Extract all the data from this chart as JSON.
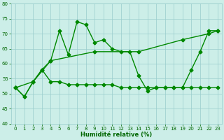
{
  "line1_x": [
    0,
    1,
    2,
    3,
    4,
    5,
    6,
    7,
    8,
    9,
    10,
    11,
    12,
    13,
    14,
    15,
    16,
    17,
    18,
    19,
    20,
    21,
    22,
    23
  ],
  "line1_y": [
    52,
    49,
    54,
    58,
    54,
    54,
    53,
    53,
    53,
    53,
    53,
    53,
    52,
    52,
    52,
    52,
    52,
    52,
    52,
    52,
    52,
    52,
    52,
    52
  ],
  "line2_x": [
    0,
    1,
    2,
    3,
    4,
    5,
    6,
    7,
    8,
    9,
    10,
    11,
    12,
    13,
    14,
    15,
    16,
    17,
    18,
    19,
    20,
    21,
    22,
    23
  ],
  "line2_y": [
    52,
    49,
    54,
    58,
    61,
    71,
    63,
    74,
    73,
    67,
    68,
    65,
    64,
    64,
    56,
    51,
    52,
    52,
    52,
    52,
    58,
    64,
    71,
    71
  ],
  "line3_x": [
    0,
    2,
    4,
    9,
    14,
    19,
    22,
    23
  ],
  "line3_y": [
    52,
    54,
    61,
    64,
    64,
    68,
    70,
    71
  ],
  "xlabel": "Humidité relative (%)",
  "xlim": [
    -0.5,
    23.5
  ],
  "ylim": [
    40,
    80
  ],
  "yticks": [
    40,
    45,
    50,
    55,
    60,
    65,
    70,
    75,
    80
  ],
  "xticks": [
    0,
    1,
    2,
    3,
    4,
    5,
    6,
    7,
    8,
    9,
    10,
    11,
    12,
    13,
    14,
    15,
    16,
    17,
    18,
    19,
    20,
    21,
    22,
    23
  ],
  "background_color": "#cceee8",
  "grid_color": "#99cccc",
  "line_color": "#008800",
  "tick_color": "#006600",
  "label_color": "#006600",
  "figsize": [
    3.2,
    2.0
  ],
  "dpi": 100,
  "tick_fontsize": 5.0,
  "xlabel_fontsize": 6.0,
  "linewidth": 1.0,
  "markersize": 2.5
}
